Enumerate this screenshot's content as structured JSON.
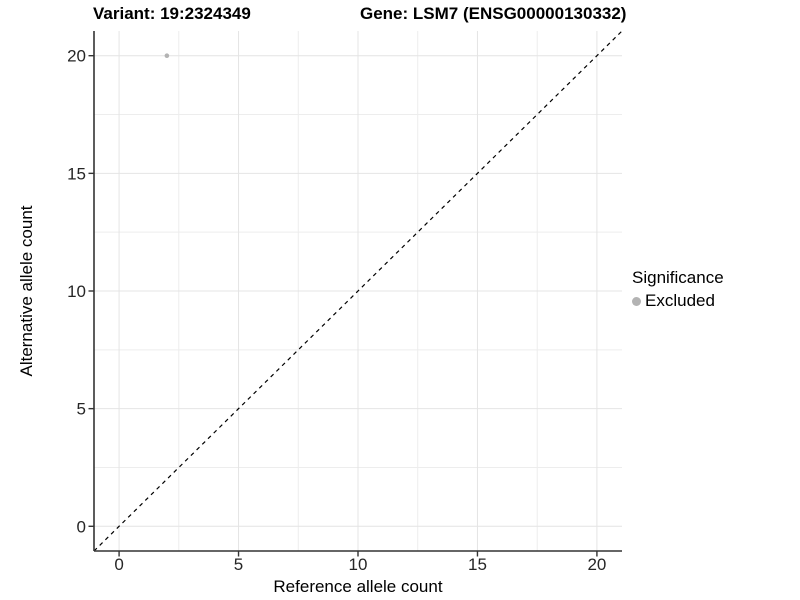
{
  "titles": {
    "variant": "Variant: 19:2324349",
    "gene": "Gene: LSM7 (ENSG00000130332)"
  },
  "axes": {
    "x_label": "Reference allele count",
    "y_label": "Alternative allele count"
  },
  "legend": {
    "title": "Significance",
    "entries": [
      {
        "label": "Excluded",
        "color": "#b3b3b3",
        "marker": "circle"
      }
    ]
  },
  "chart_data": {
    "type": "scatter",
    "title": "Variant: 19:2324349   Gene: LSM7 (ENSG00000130332)",
    "xlabel": "Reference allele count",
    "ylabel": "Alternative allele count",
    "xlim": [
      -1.05,
      21.05
    ],
    "ylim": [
      -1.05,
      21.05
    ],
    "x_ticks": [
      0,
      5,
      10,
      15,
      20
    ],
    "y_ticks": [
      0,
      5,
      10,
      15,
      20
    ],
    "x_minor_ticks": [
      2.5,
      7.5,
      12.5,
      17.5
    ],
    "y_minor_ticks": [
      2.5,
      7.5,
      12.5,
      17.5
    ],
    "grid": "major+minor",
    "legend_position": "right",
    "series": [
      {
        "name": "Excluded",
        "marker": "circle",
        "color": "#b3b3b3",
        "points": [
          {
            "x": 2,
            "y": 20
          }
        ]
      }
    ],
    "reference_line": {
      "kind": "identity y=x",
      "style": "dashed",
      "color": "#000000"
    }
  },
  "style": {
    "background": "#ffffff",
    "grid_major_color": "#e4e4e4",
    "grid_minor_color": "#ededed",
    "axis_line_color": "#333333",
    "tick_mark_color": "#333333",
    "tick_label_color": "#262626",
    "point_color": "#b3b3b3"
  }
}
